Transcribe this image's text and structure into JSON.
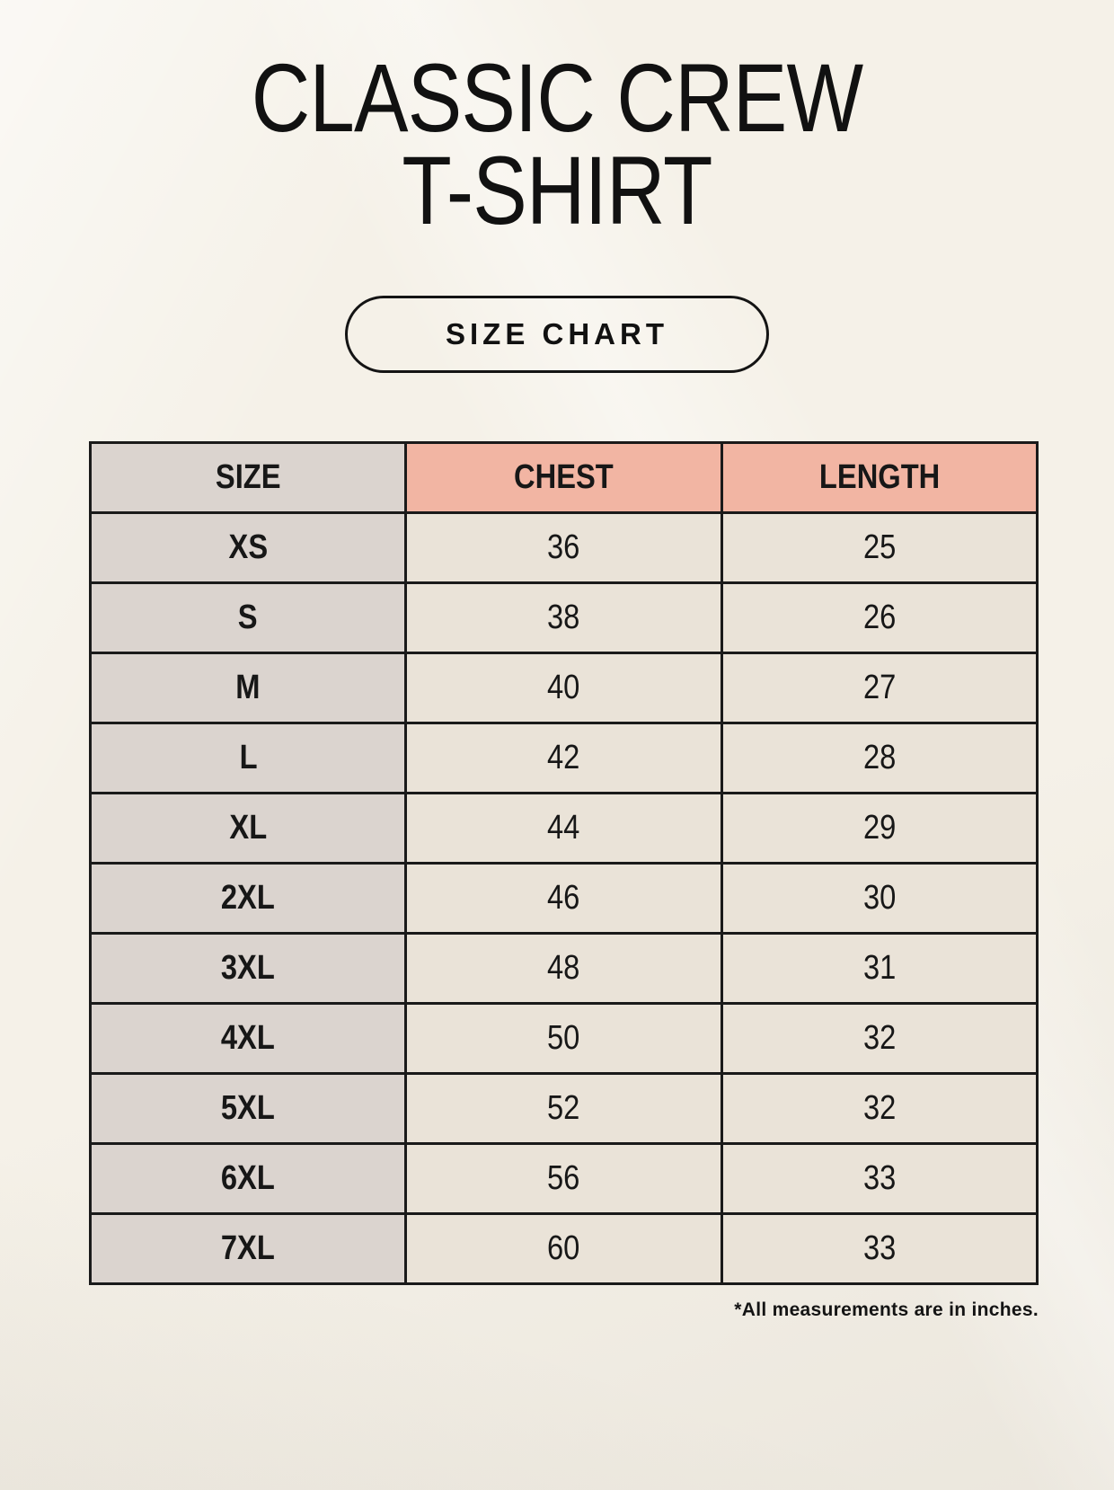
{
  "page": {
    "title_line1": "CLASSIC CREW",
    "title_line2": "T-SHIRT",
    "button_label": "SIZE CHART",
    "footnote": "*All measurements are in inches."
  },
  "table": {
    "headers": [
      "SIZE",
      "CHEST",
      "LENGTH"
    ],
    "rows": [
      {
        "size": "XS",
        "chest": "36",
        "length": "25"
      },
      {
        "size": "S",
        "chest": "38",
        "length": "26"
      },
      {
        "size": "M",
        "chest": "40",
        "length": "27"
      },
      {
        "size": "L",
        "chest": "42",
        "length": "28"
      },
      {
        "size": "XL",
        "chest": "44",
        "length": "29"
      },
      {
        "size": "2XL",
        "chest": "46",
        "length": "30"
      },
      {
        "size": "3XL",
        "chest": "48",
        "length": "31"
      },
      {
        "size": "4XL",
        "chest": "50",
        "length": "32"
      },
      {
        "size": "5XL",
        "chest": "52",
        "length": "32"
      },
      {
        "size": "6XL",
        "chest": "56",
        "length": "33"
      },
      {
        "size": "7XL",
        "chest": "60",
        "length": "33"
      }
    ]
  },
  "colors": {
    "background": "#f5f1e8",
    "header_pink": "#f2b5a3",
    "size_column_gray": "#dbd4cf",
    "cell_beige": "#eae3d8",
    "border": "#1a1a1a",
    "text": "#171717"
  },
  "chart_data": {
    "type": "table",
    "title": "CLASSIC CREW T-SHIRT — SIZE CHART",
    "columns": [
      "SIZE",
      "CHEST",
      "LENGTH"
    ],
    "units": "inches",
    "rows": [
      [
        "XS",
        36,
        25
      ],
      [
        "S",
        38,
        26
      ],
      [
        "M",
        40,
        27
      ],
      [
        "L",
        42,
        28
      ],
      [
        "XL",
        44,
        29
      ],
      [
        "2XL",
        46,
        30
      ],
      [
        "3XL",
        48,
        31
      ],
      [
        "4XL",
        50,
        32
      ],
      [
        "5XL",
        52,
        32
      ],
      [
        "6XL",
        56,
        33
      ],
      [
        "7XL",
        60,
        33
      ]
    ]
  }
}
